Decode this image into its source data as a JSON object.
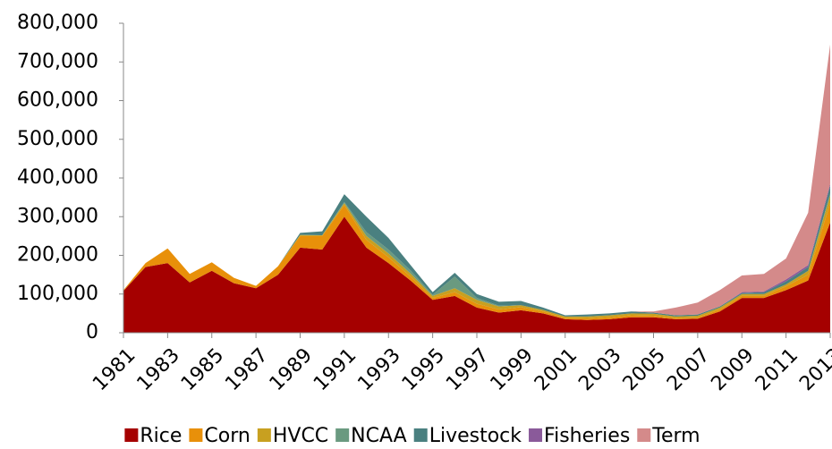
{
  "chart_data": {
    "type": "stacked-area",
    "x": [
      1981,
      1982,
      1983,
      1984,
      1985,
      1986,
      1987,
      1988,
      1989,
      1990,
      1991,
      1992,
      1993,
      1994,
      1995,
      1996,
      1997,
      1998,
      1999,
      2000,
      2001,
      2002,
      2003,
      2004,
      2005,
      2006,
      2007,
      2008,
      2009,
      2010,
      2011,
      2012,
      2013
    ],
    "xlim": [
      1981,
      2013
    ],
    "xticks": [
      1981,
      1983,
      1985,
      1987,
      1989,
      1991,
      1993,
      1995,
      1997,
      1999,
      2001,
      2003,
      2005,
      2007,
      2009,
      2011,
      2013
    ],
    "ylim": [
      0,
      800000
    ],
    "yticks": [
      0,
      {
        "value": 100000,
        "label": "100,000"
      },
      {
        "value": 200000,
        "label": "200,000"
      },
      {
        "value": 300000,
        "label": "300,000"
      },
      {
        "value": 400000,
        "label": "400,000"
      },
      {
        "value": 500000,
        "label": "500,000"
      },
      {
        "value": 600000,
        "label": "600,000"
      },
      {
        "value": 700000,
        "label": "700,000"
      },
      {
        "value": 800000,
        "label": "800,000"
      }
    ],
    "grid": false,
    "legend": "bottom",
    "series": [
      {
        "name": "Rice",
        "color": "#a50000",
        "values": [
          108000,
          170000,
          180000,
          130000,
          160000,
          128000,
          115000,
          150000,
          220000,
          215000,
          300000,
          220000,
          180000,
          135000,
          85000,
          95000,
          65000,
          52000,
          58000,
          50000,
          35000,
          33000,
          35000,
          40000,
          40000,
          35000,
          36000,
          55000,
          90000,
          90000,
          110000,
          135000,
          285000
        ]
      },
      {
        "name": "Corn",
        "color": "#e8900a",
        "values": [
          2000,
          10000,
          38000,
          22000,
          22000,
          14000,
          6000,
          22000,
          30000,
          35000,
          30000,
          20000,
          15000,
          10000,
          5000,
          10000,
          10000,
          8000,
          8000,
          5000,
          3000,
          4000,
          5000,
          5000,
          4000,
          3000,
          3000,
          5000,
          5000,
          5000,
          10000,
          15000,
          50000
        ]
      },
      {
        "name": "HVCC",
        "color": "#c8a020",
        "values": [
          0,
          0,
          0,
          0,
          0,
          0,
          0,
          0,
          3000,
          2000,
          5000,
          10000,
          10000,
          8000,
          5000,
          10000,
          10000,
          8000,
          5000,
          4000,
          4000,
          5000,
          5000,
          5000,
          5000,
          4000,
          5000,
          5000,
          5000,
          5000,
          5000,
          10000,
          20000
        ]
      },
      {
        "name": "NCAA",
        "color": "#6a9a80",
        "values": [
          0,
          0,
          0,
          0,
          0,
          0,
          0,
          0,
          0,
          0,
          3000,
          10000,
          10000,
          8000,
          3000,
          30000,
          5000,
          2000,
          0,
          0,
          0,
          0,
          0,
          0,
          0,
          0,
          0,
          0,
          0,
          0,
          0,
          0,
          5000
        ]
      },
      {
        "name": "Livestock",
        "color": "#4a8080",
        "values": [
          0,
          0,
          0,
          0,
          0,
          0,
          0,
          0,
          5000,
          10000,
          20000,
          40000,
          30000,
          14000,
          7000,
          10000,
          10000,
          10000,
          11000,
          6000,
          3000,
          5000,
          5000,
          5000,
          3000,
          3000,
          3000,
          3000,
          3000,
          5000,
          8000,
          10000,
          20000
        ]
      },
      {
        "name": "Fisheries",
        "color": "#8a5a9a",
        "values": [
          0,
          0,
          0,
          0,
          0,
          0,
          0,
          0,
          0,
          0,
          0,
          0,
          0,
          0,
          0,
          0,
          0,
          0,
          0,
          0,
          0,
          0,
          0,
          0,
          0,
          0,
          0,
          0,
          2000,
          2000,
          5000,
          5000,
          5000
        ]
      },
      {
        "name": "Term",
        "color": "#d48a8a",
        "values": [
          0,
          0,
          0,
          0,
          0,
          0,
          0,
          0,
          0,
          0,
          0,
          0,
          0,
          0,
          0,
          0,
          0,
          0,
          0,
          0,
          0,
          0,
          0,
          0,
          3000,
          20000,
          31000,
          42000,
          43000,
          45000,
          54000,
          135000,
          360000
        ]
      }
    ]
  }
}
